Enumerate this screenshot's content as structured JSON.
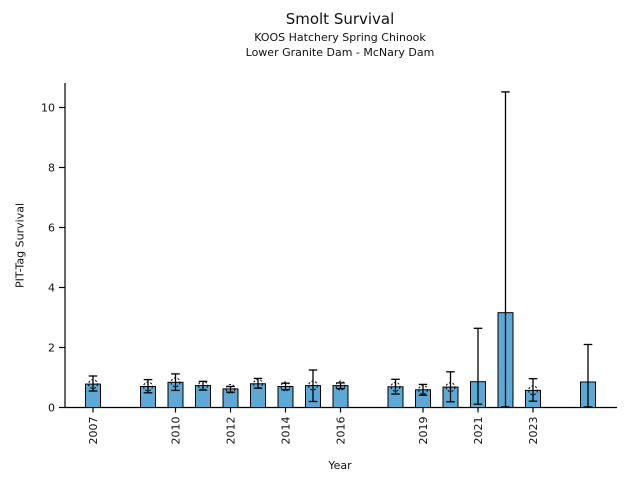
{
  "header": {
    "title": "Smolt Survival",
    "subtitle1": "KOOS Hatchery Spring Chinook",
    "subtitle2": "Lower Granite Dam - McNary Dam"
  },
  "chart_data": {
    "type": "bar",
    "title": "Smolt Survival",
    "subtitle": [
      "KOOS Hatchery Spring Chinook",
      "Lower Granite Dam - McNary Dam"
    ],
    "xlabel": "Year",
    "ylabel": "PIT-Tag Survival",
    "xlim": [
      2006,
      2026
    ],
    "ylim": [
      0,
      10.8
    ],
    "yticks": [
      0,
      2,
      4,
      6,
      8,
      10
    ],
    "xticks": [
      2007,
      2010,
      2012,
      2014,
      2016,
      2019,
      2021,
      2023
    ],
    "grid": false,
    "legend": "none",
    "bar_color": "#5ca9d6",
    "bar_edge_color": "#000000",
    "error_color": "#000000",
    "points": [
      {
        "year": 2007,
        "value": 0.78,
        "err_low": 0.55,
        "err_high": 1.05,
        "marker": true
      },
      {
        "year": 2009,
        "value": 0.7,
        "err_low": 0.49,
        "err_high": 0.93,
        "marker": true
      },
      {
        "year": 2010,
        "value": 0.84,
        "err_low": 0.57,
        "err_high": 1.12,
        "marker": true
      },
      {
        "year": 2011,
        "value": 0.73,
        "err_low": 0.58,
        "err_high": 0.87,
        "marker": true
      },
      {
        "year": 2012,
        "value": 0.62,
        "err_low": 0.51,
        "err_high": 0.7,
        "marker": true
      },
      {
        "year": 2013,
        "value": 0.79,
        "err_low": 0.64,
        "err_high": 0.97,
        "marker": true
      },
      {
        "year": 2014,
        "value": 0.7,
        "err_low": 0.59,
        "err_high": 0.81,
        "marker": true
      },
      {
        "year": 2015,
        "value": 0.73,
        "err_low": 0.2,
        "err_high": 1.25,
        "marker": true
      },
      {
        "year": 2016,
        "value": 0.73,
        "err_low": 0.63,
        "err_high": 0.82,
        "marker": true
      },
      {
        "year": 2018,
        "value": 0.69,
        "err_low": 0.45,
        "err_high": 0.94,
        "marker": true
      },
      {
        "year": 2019,
        "value": 0.59,
        "err_low": 0.41,
        "err_high": 0.77,
        "marker": true
      },
      {
        "year": 2020,
        "value": 0.68,
        "err_low": 0.19,
        "err_high": 1.19,
        "marker": true
      },
      {
        "year": 2021,
        "value": 0.86,
        "err_low": 0.11,
        "err_high": 2.64,
        "marker": false
      },
      {
        "year": 2022,
        "value": 3.16,
        "err_low": 0.02,
        "err_high": 10.52,
        "marker": false
      },
      {
        "year": 2023,
        "value": 0.57,
        "err_low": 0.21,
        "err_high": 0.96,
        "marker": true
      },
      {
        "year": 2025,
        "value": 0.85,
        "err_low": 0.02,
        "err_high": 2.1,
        "marker": false
      }
    ]
  }
}
